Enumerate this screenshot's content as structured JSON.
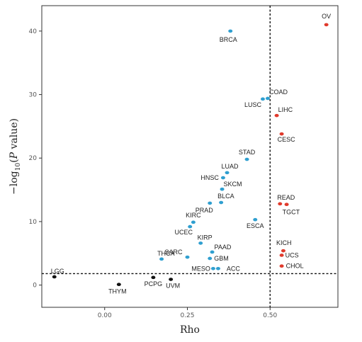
{
  "chart_data": {
    "type": "scatter",
    "title": "",
    "xlabel": "Rho",
    "ylabel": "-log10(P value)",
    "xlim": [
      -0.19,
      0.705
    ],
    "ylim": [
      -3.5,
      44
    ],
    "x_ticks": [
      "0.00",
      "0.25",
      "0.50"
    ],
    "y_ticks": [
      "0",
      "10",
      "20",
      "30",
      "40"
    ],
    "grid": false,
    "reference_lines": {
      "vertical_x": 0.5,
      "horizontal_y": 1.8
    },
    "colors": {
      "negative": "#111111",
      "blue": "#2f9fd0",
      "red": "#e03a2c"
    },
    "points": [
      {
        "label": "OV",
        "x": 0.67,
        "y": 41.0,
        "group": "red"
      },
      {
        "label": "BRCA",
        "x": 0.38,
        "y": 40.0,
        "group": "blue"
      },
      {
        "label": "COAD",
        "x": 0.493,
        "y": 29.4,
        "group": "blue"
      },
      {
        "label": "LUSC",
        "x": 0.478,
        "y": 29.3,
        "group": "blue"
      },
      {
        "label": "LIHC",
        "x": 0.52,
        "y": 26.7,
        "group": "red"
      },
      {
        "label": "CESC",
        "x": 0.535,
        "y": 23.8,
        "group": "red"
      },
      {
        "label": "STAD",
        "x": 0.43,
        "y": 19.8,
        "group": "blue"
      },
      {
        "label": "LUAD",
        "x": 0.37,
        "y": 17.7,
        "group": "blue"
      },
      {
        "label": "HNSC",
        "x": 0.358,
        "y": 16.9,
        "group": "blue"
      },
      {
        "label": "SKCM",
        "x": 0.355,
        "y": 15.1,
        "group": "blue"
      },
      {
        "label": "BLCA",
        "x": 0.352,
        "y": 13.0,
        "group": "blue"
      },
      {
        "label": "PRAD",
        "x": 0.318,
        "y": 12.9,
        "group": "blue"
      },
      {
        "label": "READ",
        "x": 0.53,
        "y": 12.8,
        "group": "red"
      },
      {
        "label": "TGCT",
        "x": 0.55,
        "y": 12.7,
        "group": "red"
      },
      {
        "label": "ESCA",
        "x": 0.455,
        "y": 10.3,
        "group": "blue"
      },
      {
        "label": "KIRC",
        "x": 0.268,
        "y": 9.9,
        "group": "blue"
      },
      {
        "label": "UCEC",
        "x": 0.258,
        "y": 9.2,
        "group": "blue"
      },
      {
        "label": "KIRP",
        "x": 0.29,
        "y": 6.6,
        "group": "blue"
      },
      {
        "label": "PAAD",
        "x": 0.325,
        "y": 5.2,
        "group": "blue"
      },
      {
        "label": "KICH",
        "x": 0.54,
        "y": 5.4,
        "group": "red"
      },
      {
        "label": "UCS",
        "x": 0.535,
        "y": 4.7,
        "group": "red"
      },
      {
        "label": "SARC",
        "x": 0.25,
        "y": 4.4,
        "group": "blue"
      },
      {
        "label": "GBM",
        "x": 0.318,
        "y": 4.2,
        "group": "blue"
      },
      {
        "label": "THCA",
        "x": 0.172,
        "y": 4.1,
        "group": "blue"
      },
      {
        "label": "CHOL",
        "x": 0.535,
        "y": 3.0,
        "group": "red"
      },
      {
        "label": "MESO",
        "x": 0.328,
        "y": 2.6,
        "group": "blue"
      },
      {
        "label": "ACC",
        "x": 0.343,
        "y": 2.6,
        "group": "blue"
      },
      {
        "label": "LGG",
        "x": -0.152,
        "y": 1.3,
        "group": "negative"
      },
      {
        "label": "PCPG",
        "x": 0.147,
        "y": 1.2,
        "group": "negative"
      },
      {
        "label": "UVM",
        "x": 0.2,
        "y": 0.9,
        "group": "negative"
      },
      {
        "label": "THYM",
        "x": 0.043,
        "y": 0.1,
        "group": "negative"
      }
    ]
  }
}
